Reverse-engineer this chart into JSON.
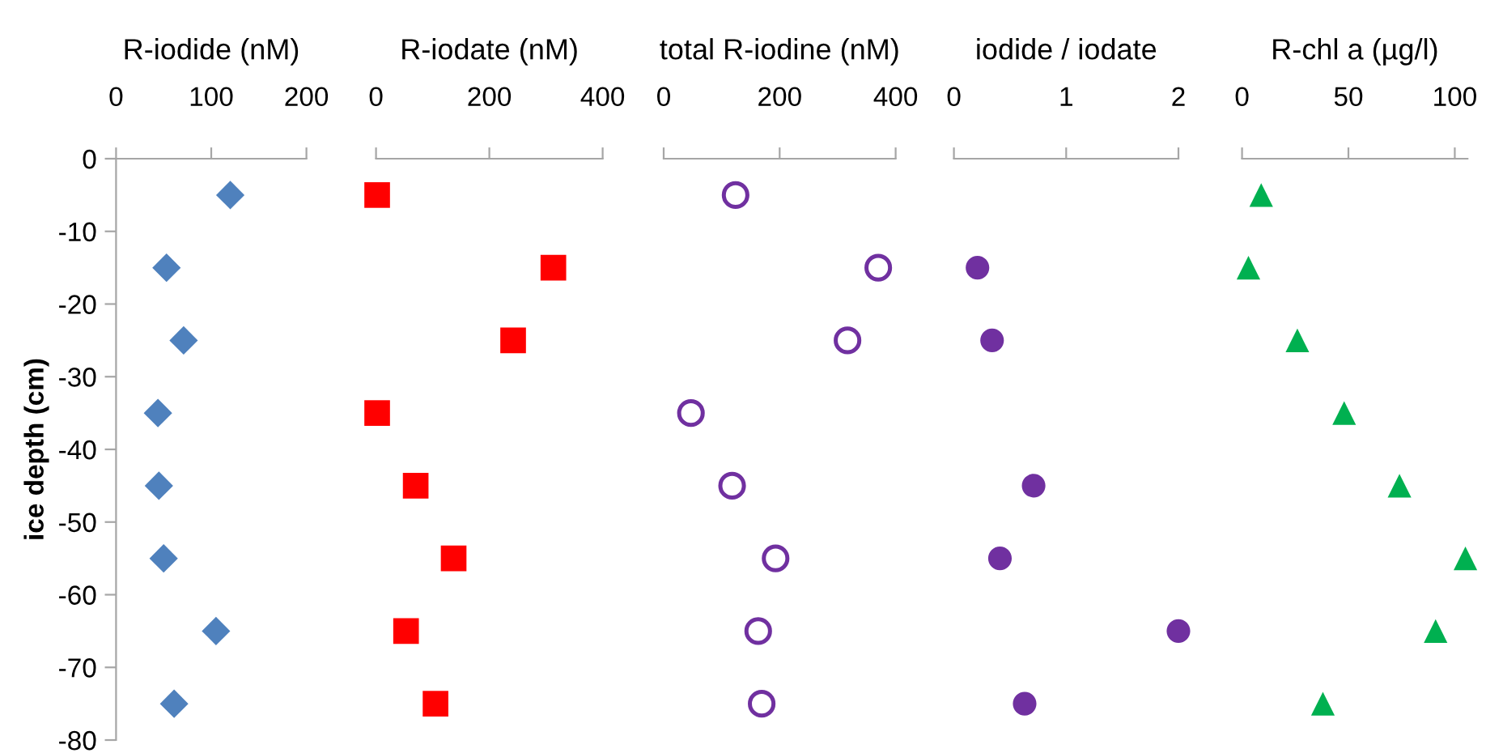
{
  "chart_data": [
    {
      "type": "scatter",
      "xlabel": "R-iodide (nM)",
      "ylabel": "ice depth (cm)",
      "marker": "diamond",
      "xlim": [
        0,
        200
      ],
      "xticks": [
        0,
        100,
        200
      ],
      "ylim": [
        -80,
        0
      ],
      "yticks": [
        0,
        -10,
        -20,
        -30,
        -40,
        -50,
        -60,
        -70,
        -80
      ],
      "series": [
        {
          "color": "#4f81bd",
          "x": [
            120,
            53,
            71,
            44,
            45,
            50,
            105,
            61
          ],
          "values": [
            -5,
            -15,
            -25,
            -35,
            -45,
            -55,
            -65,
            -75
          ]
        }
      ]
    },
    {
      "type": "scatter",
      "xlabel": "R-iodate (nM)",
      "marker": "square",
      "xlim": [
        0,
        400
      ],
      "xticks": [
        0,
        200,
        400
      ],
      "ylim": [
        -80,
        0
      ],
      "tick_labels": "x",
      "series": [
        {
          "color": "#ff0000",
          "x": [
            2,
            313,
            242,
            2,
            70,
            137,
            53,
            105
          ],
          "values": [
            -5,
            -15,
            -25,
            -35,
            -45,
            -55,
            -65,
            -75
          ]
        }
      ]
    },
    {
      "type": "scatter",
      "xlabel": "total R-iodine (nM)",
      "marker": "circle",
      "xlim": [
        0,
        400
      ],
      "xticks": [
        0,
        200,
        400
      ],
      "ylim": [
        -80,
        0
      ],
      "tick_labels": "x",
      "series": [
        {
          "color": "#7030a0",
          "x": [
            124,
            370,
            317,
            47,
            118,
            193,
            163,
            169
          ],
          "values": [
            -5,
            -15,
            -25,
            -35,
            -45,
            -55,
            -65,
            -75
          ]
        }
      ]
    },
    {
      "type": "scatter",
      "xlabel": "iodide / iodate",
      "marker": "circle",
      "xlim": [
        0,
        2
      ],
      "xticks": [
        0,
        1,
        2
      ],
      "ylim": [
        -80,
        0
      ],
      "tick_labels": "x",
      "series": [
        {
          "color": "#7030a0",
          "x": [
            0.21,
            0.34,
            0.71,
            0.41,
            2.0,
            0.63
          ],
          "values": [
            -15,
            -25,
            -45,
            -55,
            -65,
            -75
          ]
        }
      ]
    },
    {
      "type": "scatter",
      "xlabel": "R-chl a (µg/l)",
      "marker": "triangle",
      "xlim": [
        0,
        106
      ],
      "xticks": [
        0,
        50,
        100
      ],
      "ylim": [
        -80,
        0
      ],
      "tick_labels": "x",
      "series": [
        {
          "color": "#00b050",
          "x": [
            9,
            3,
            26,
            48,
            74,
            105,
            91,
            38
          ],
          "values": [
            -5,
            -15,
            -25,
            -35,
            -45,
            -55,
            -65,
            -75
          ]
        }
      ]
    }
  ]
}
